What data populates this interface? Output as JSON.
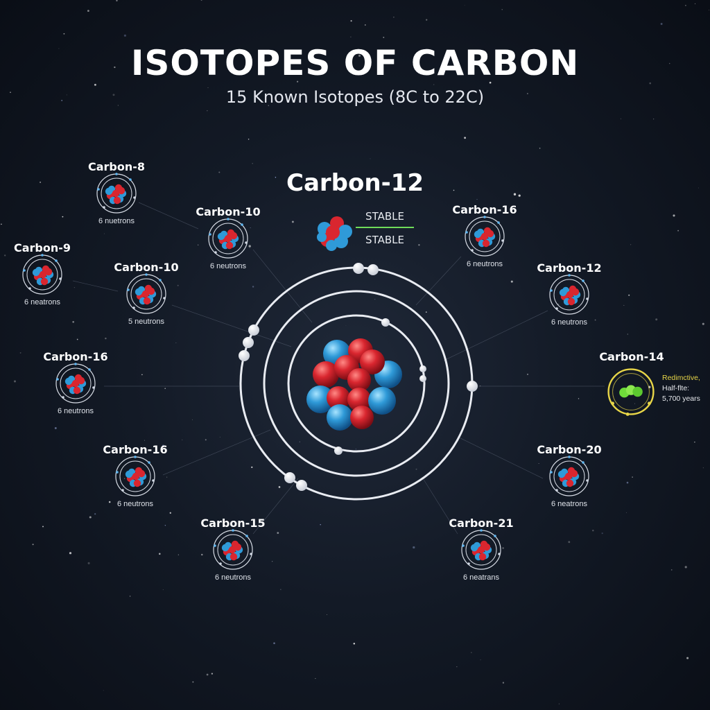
{
  "title": "ISOTOPES OF CARBON",
  "subtitle": "15 Known Isotopes (8C to 22C)",
  "center": {
    "name": "Carbon-12",
    "status_1": "STABLE",
    "status_2": "STABLE"
  },
  "isotopes": [
    {
      "name": "Carbon-8",
      "note": "6 nuetrons"
    },
    {
      "name": "Carbon-10",
      "note": "6 neutrons"
    },
    {
      "name": "Carbon-9",
      "note": "6 neatrons"
    },
    {
      "name": "Carbon-10",
      "note": "5 neutrons"
    },
    {
      "name": "Carbon-16",
      "note": "6 neutrons"
    },
    {
      "name": "Carbon-16",
      "note": "6 neutrons"
    },
    {
      "name": "Carbon-15",
      "note": "6 neutrons"
    },
    {
      "name": "Carbon-16",
      "note": "6 neutrons"
    },
    {
      "name": "Carbon-12",
      "note": "6 neutrons"
    },
    {
      "name": "Carbon-14",
      "note": ""
    },
    {
      "name": "Carbon-20",
      "note": "6 neatrons"
    },
    {
      "name": "Carbon-21",
      "note": "6 neatrans"
    }
  ],
  "radioactive": {
    "line1": "Redimctive,",
    "line2": "Half-flte:",
    "line3": "5,700 years"
  },
  "colors": {
    "proton": "#d9262f",
    "neutron": "#2f9ad8",
    "radioactive": "#e8d648",
    "stable_line": "#6fdc5a",
    "background": "#0e131c"
  }
}
